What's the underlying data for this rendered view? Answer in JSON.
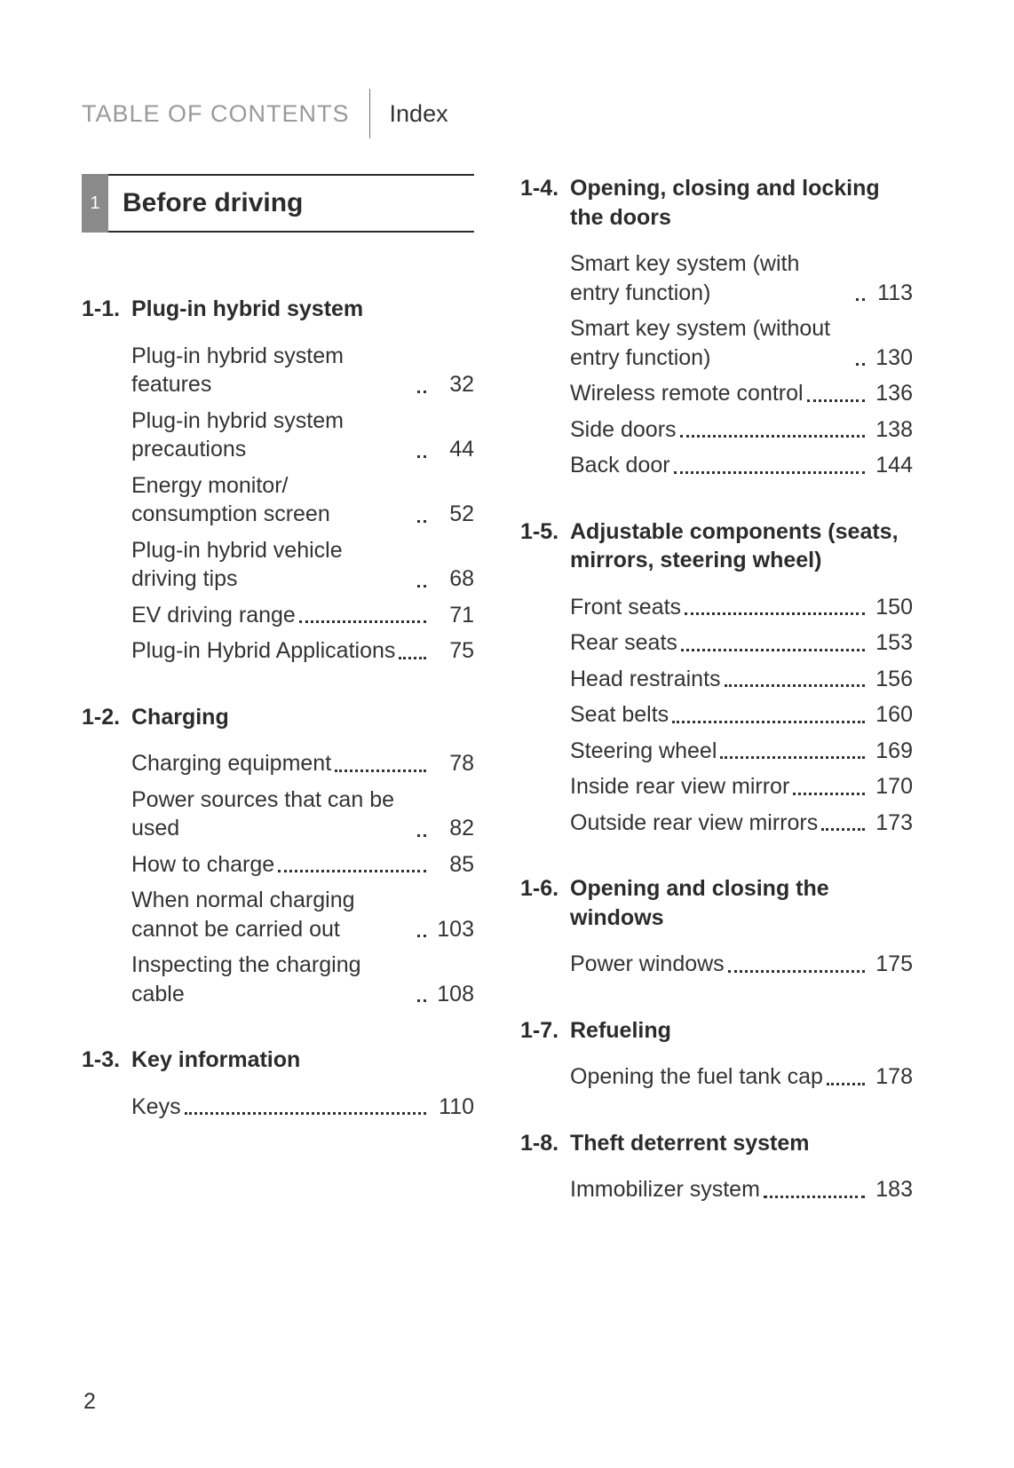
{
  "header": {
    "left": "TABLE OF CONTENTS",
    "right": "Index"
  },
  "chapter": {
    "number": "1",
    "title": "Before driving"
  },
  "pageNumber": "2",
  "left_sections": [
    {
      "num": "1-1.",
      "title": "Plug-in hybrid system",
      "entries": [
        {
          "label": "Plug-in hybrid system features",
          "page": "32"
        },
        {
          "label": "Plug-in hybrid system precautions",
          "page": "44"
        },
        {
          "label": "Energy monitor/ consumption screen",
          "page": "52"
        },
        {
          "label": "Plug-in hybrid vehicle driving tips",
          "page": "68"
        },
        {
          "label": "EV driving range",
          "page": "71"
        },
        {
          "label": "Plug-in Hybrid Applications",
          "page": "75"
        }
      ]
    },
    {
      "num": "1-2.",
      "title": "Charging",
      "entries": [
        {
          "label": "Charging equipment",
          "page": "78"
        },
        {
          "label": "Power sources that can be used",
          "page": "82"
        },
        {
          "label": "How to charge",
          "page": "85"
        },
        {
          "label": "When normal charging cannot be carried out",
          "page": "103"
        },
        {
          "label": "Inspecting the charging cable",
          "page": "108"
        }
      ]
    },
    {
      "num": "1-3.",
      "title": "Key information",
      "entries": [
        {
          "label": "Keys",
          "page": "110"
        }
      ]
    }
  ],
  "right_sections": [
    {
      "num": "1-4.",
      "title": "Opening, closing and locking the doors",
      "entries": [
        {
          "label": "Smart key system (with entry function)",
          "page": "113"
        },
        {
          "label": "Smart key system (without entry function)",
          "page": "130"
        },
        {
          "label": "Wireless remote control",
          "page": "136"
        },
        {
          "label": "Side doors",
          "page": "138"
        },
        {
          "label": "Back door",
          "page": "144"
        }
      ]
    },
    {
      "num": "1-5.",
      "title": "Adjustable components (seats, mirrors, steering wheel)",
      "entries": [
        {
          "label": "Front seats",
          "page": "150"
        },
        {
          "label": "Rear seats",
          "page": "153"
        },
        {
          "label": "Head restraints",
          "page": "156"
        },
        {
          "label": "Seat belts",
          "page": "160"
        },
        {
          "label": "Steering wheel",
          "page": "169"
        },
        {
          "label": "Inside rear view mirror",
          "page": "170"
        },
        {
          "label": "Outside rear view mirrors",
          "page": "173"
        }
      ]
    },
    {
      "num": "1-6.",
      "title": "Opening and closing the windows",
      "entries": [
        {
          "label": "Power windows",
          "page": "175"
        }
      ]
    },
    {
      "num": "1-7.",
      "title": "Refueling",
      "entries": [
        {
          "label": "Opening the fuel tank cap",
          "page": "178"
        }
      ]
    },
    {
      "num": "1-8.",
      "title": "Theft deterrent system",
      "entries": [
        {
          "label": "Immobilizer system",
          "page": "183"
        }
      ]
    }
  ]
}
